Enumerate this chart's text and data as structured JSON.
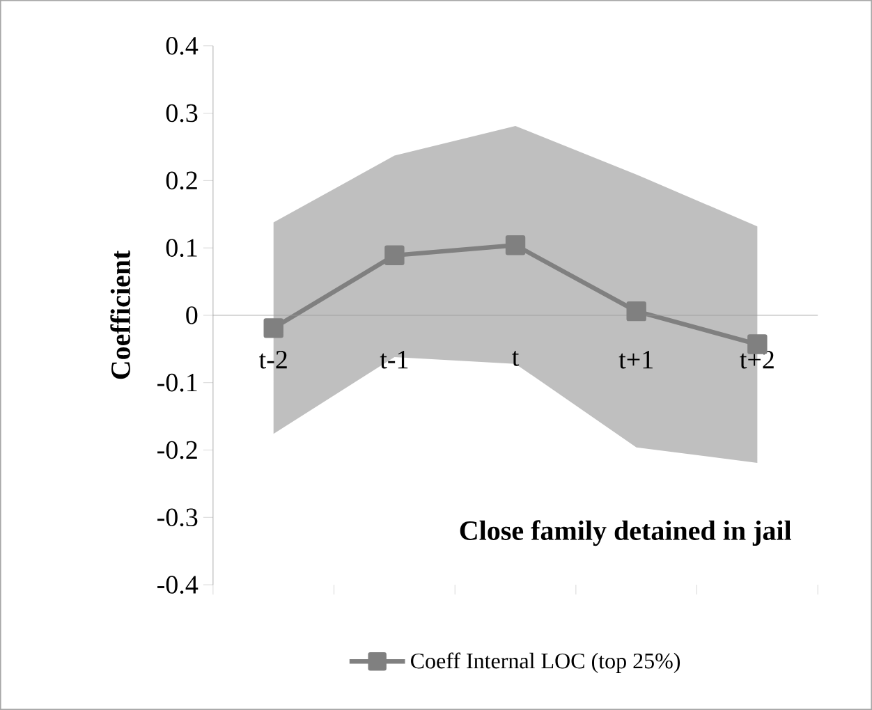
{
  "chart_data": {
    "type": "line",
    "ylabel": "Coefficient",
    "categories": [
      "t-2",
      "t-1",
      "t",
      "t+1",
      "t+2"
    ],
    "series": [
      {
        "name": "Coeff Internal LOC (top 25%)",
        "color": "#808080",
        "values": [
          -0.019,
          0.089,
          0.104,
          0.006,
          -0.043
        ],
        "lower": [
          -0.176,
          -0.062,
          -0.072,
          -0.196,
          -0.219
        ],
        "upper": [
          0.138,
          0.237,
          0.281,
          0.209,
          0.132
        ]
      }
    ],
    "ylim": [
      -0.4,
      0.4
    ],
    "yticks": [
      -0.4,
      -0.3,
      -0.2,
      -0.1,
      0,
      0.1,
      0.2,
      0.3,
      0.4
    ],
    "annotations": [
      "Close family detained in jail"
    ],
    "grid": false,
    "legend": "bottom",
    "marker": "square",
    "line_style": "solid"
  }
}
